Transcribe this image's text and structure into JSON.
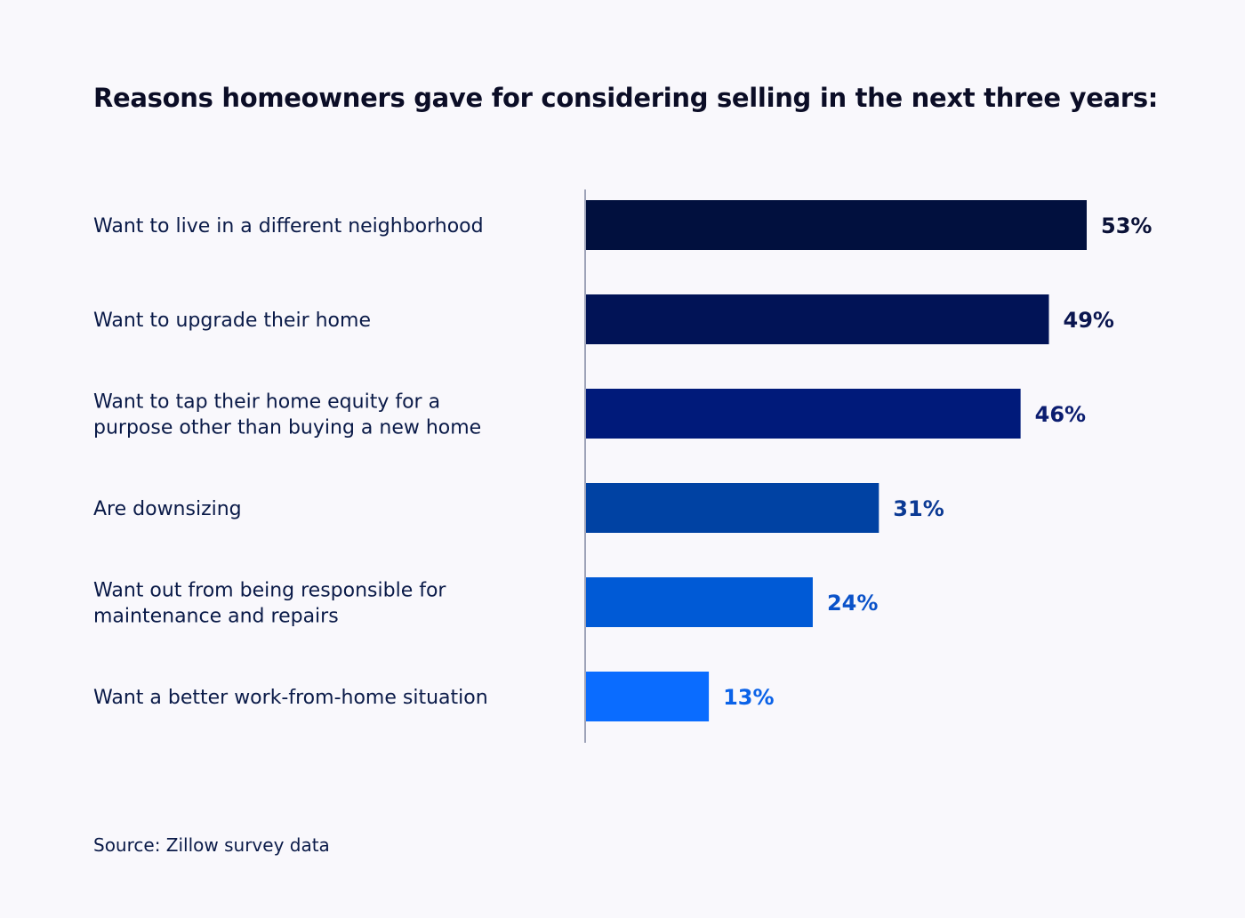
{
  "title": "Reasons homeowners gave for considering selling in the next three years:",
  "source": "Source: Zillow survey data",
  "chart_data": {
    "type": "bar",
    "orientation": "horizontal",
    "title": "Reasons homeowners gave for considering selling in the next three years:",
    "categories": [
      [
        "Want to live in a different neighborhood"
      ],
      [
        "Want to upgrade their home"
      ],
      [
        "Want to tap their home equity for a",
        "purpose other than buying a new home"
      ],
      [
        "Are downsizing"
      ],
      [
        "Want out from being responsible for",
        "maintenance and repairs"
      ],
      [
        "Want a better work-from-home situation"
      ]
    ],
    "values": [
      53,
      49,
      46,
      31,
      24,
      13
    ],
    "value_labels": [
      "53%",
      "49%",
      "46%",
      "31%",
      "24%",
      "13%"
    ],
    "unit": "%",
    "xlim": [
      0,
      100
    ],
    "grid": false,
    "legend": "none",
    "bar_colors": [
      "#01103e",
      "#011356",
      "#001a7a",
      "#0042a3",
      "#005ad6",
      "#0a6cff"
    ],
    "label_colors": [
      "#0b1238",
      "#0b1650",
      "#0b1d70",
      "#0c3a94",
      "#0a52c9",
      "#0a62e8"
    ],
    "axis_color": "#9ea3b8"
  }
}
